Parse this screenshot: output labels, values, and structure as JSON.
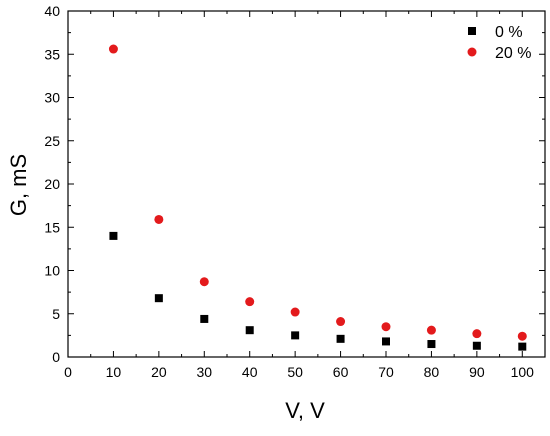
{
  "chart_data": {
    "type": "scatter",
    "xlabel": "V, V",
    "ylabel": "G, mS",
    "xlim": [
      0,
      105
    ],
    "ylim": [
      0,
      40
    ],
    "xticks": [
      0,
      10,
      20,
      30,
      40,
      50,
      60,
      70,
      80,
      90,
      100
    ],
    "yticks": [
      0,
      5,
      10,
      15,
      20,
      25,
      30,
      35,
      40
    ],
    "legend_position": "top-right",
    "grid": false,
    "series": [
      {
        "name": "0 %",
        "marker": "square",
        "color": "#000000",
        "x": [
          10,
          20,
          30,
          40,
          50,
          60,
          70,
          80,
          90,
          100
        ],
        "y": [
          14.0,
          6.8,
          4.4,
          3.1,
          2.5,
          2.1,
          1.8,
          1.5,
          1.3,
          1.2
        ]
      },
      {
        "name": "20 %",
        "marker": "circle",
        "color": "#e31a1c",
        "x": [
          10,
          20,
          30,
          40,
          50,
          60,
          70,
          80,
          90,
          100
        ],
        "y": [
          35.6,
          15.9,
          8.7,
          6.4,
          5.2,
          4.1,
          3.5,
          3.1,
          2.7,
          2.4
        ]
      }
    ]
  }
}
